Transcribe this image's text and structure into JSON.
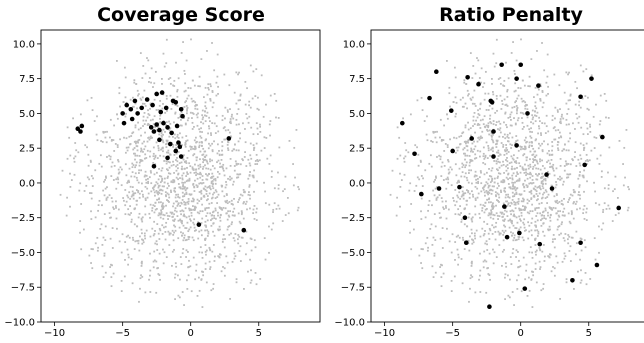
{
  "chart_data": [
    {
      "type": "scatter",
      "title": "Coverage Score",
      "xlabel": "",
      "ylabel": "",
      "xlim": [
        -11,
        9.5
      ],
      "ylim": [
        -10,
        11
      ],
      "xticks": [
        -10,
        -5,
        0,
        5
      ],
      "yticks": [
        -10.0,
        -7.5,
        -5.0,
        -2.5,
        0.0,
        2.5,
        5.0,
        7.5,
        10.0
      ],
      "grid": false,
      "background_color": "#bdbdbd",
      "highlight_color": "#000000",
      "highlighted_points": [
        {
          "x": -8.3,
          "y": 3.9
        },
        {
          "x": -8.0,
          "y": 4.1
        },
        {
          "x": -8.1,
          "y": 3.7
        },
        {
          "x": -5.0,
          "y": 5.0
        },
        {
          "x": -4.7,
          "y": 5.6
        },
        {
          "x": -4.4,
          "y": 5.3
        },
        {
          "x": -4.1,
          "y": 5.9
        },
        {
          "x": -3.9,
          "y": 5.0
        },
        {
          "x": -3.6,
          "y": 5.4
        },
        {
          "x": -4.3,
          "y": 4.6
        },
        {
          "x": -4.9,
          "y": 4.3
        },
        {
          "x": -3.2,
          "y": 6.0
        },
        {
          "x": -2.8,
          "y": 5.6
        },
        {
          "x": -2.5,
          "y": 6.4
        },
        {
          "x": -2.1,
          "y": 6.5
        },
        {
          "x": -2.2,
          "y": 5.1
        },
        {
          "x": -1.8,
          "y": 5.4
        },
        {
          "x": -1.3,
          "y": 5.9
        },
        {
          "x": -1.1,
          "y": 5.8
        },
        {
          "x": -0.7,
          "y": 5.3
        },
        {
          "x": -0.6,
          "y": 4.8
        },
        {
          "x": -2.9,
          "y": 4.0
        },
        {
          "x": -2.7,
          "y": 3.7
        },
        {
          "x": -2.5,
          "y": 4.2
        },
        {
          "x": -2.3,
          "y": 3.8
        },
        {
          "x": -2.0,
          "y": 4.3
        },
        {
          "x": -1.7,
          "y": 4.0
        },
        {
          "x": -1.4,
          "y": 3.6
        },
        {
          "x": -1.0,
          "y": 4.1
        },
        {
          "x": -2.3,
          "y": 3.1
        },
        {
          "x": -1.5,
          "y": 2.8
        },
        {
          "x": -1.1,
          "y": 2.3
        },
        {
          "x": -0.8,
          "y": 2.6
        },
        {
          "x": -0.9,
          "y": 2.9
        },
        {
          "x": -0.7,
          "y": 1.9
        },
        {
          "x": -1.7,
          "y": 1.8
        },
        {
          "x": -2.7,
          "y": 1.2
        },
        {
          "x": 2.8,
          "y": 3.2
        },
        {
          "x": 0.6,
          "y": -3.0
        },
        {
          "x": 3.9,
          "y": -3.4
        }
      ]
    },
    {
      "type": "scatter",
      "title": "Ratio Penalty",
      "xlabel": "",
      "ylabel": "",
      "xlim": [
        -11,
        9.5
      ],
      "ylim": [
        -10,
        11
      ],
      "xticks": [
        -10,
        -5,
        0,
        5
      ],
      "yticks": [
        -10.0,
        -7.5,
        -5.0,
        -2.5,
        0.0,
        2.5,
        5.0,
        7.5,
        10.0
      ],
      "grid": false,
      "background_color": "#bdbdbd",
      "highlight_color": "#000000",
      "highlighted_points": [
        {
          "x": -6.2,
          "y": 8.0
        },
        {
          "x": -3.9,
          "y": 7.6
        },
        {
          "x": -3.1,
          "y": 7.1
        },
        {
          "x": -1.4,
          "y": 8.5
        },
        {
          "x": 0.0,
          "y": 8.5
        },
        {
          "x": -0.3,
          "y": 7.5
        },
        {
          "x": 1.3,
          "y": 7.0
        },
        {
          "x": 5.2,
          "y": 7.5
        },
        {
          "x": -6.7,
          "y": 6.1
        },
        {
          "x": -2.2,
          "y": 5.9
        },
        {
          "x": -2.1,
          "y": 5.8
        },
        {
          "x": 4.4,
          "y": 6.2
        },
        {
          "x": -5.1,
          "y": 5.2
        },
        {
          "x": 0.5,
          "y": 5.0
        },
        {
          "x": -8.7,
          "y": 4.3
        },
        {
          "x": -2.0,
          "y": 3.7
        },
        {
          "x": -3.6,
          "y": 3.2
        },
        {
          "x": 6.0,
          "y": 3.3
        },
        {
          "x": -7.8,
          "y": 2.1
        },
        {
          "x": -5.0,
          "y": 2.3
        },
        {
          "x": -0.3,
          "y": 2.7
        },
        {
          "x": -2.0,
          "y": 1.9
        },
        {
          "x": 4.7,
          "y": 1.3
        },
        {
          "x": 1.9,
          "y": 0.6
        },
        {
          "x": -6.0,
          "y": -0.4
        },
        {
          "x": -4.5,
          "y": -0.3
        },
        {
          "x": 2.3,
          "y": -0.4
        },
        {
          "x": -7.3,
          "y": -0.8
        },
        {
          "x": -1.2,
          "y": -1.7
        },
        {
          "x": 7.2,
          "y": -1.8
        },
        {
          "x": -4.1,
          "y": -2.5
        },
        {
          "x": -0.1,
          "y": -3.6
        },
        {
          "x": -1.0,
          "y": -3.9
        },
        {
          "x": -4.0,
          "y": -4.3
        },
        {
          "x": 1.4,
          "y": -4.4
        },
        {
          "x": 4.4,
          "y": -4.3
        },
        {
          "x": 5.6,
          "y": -5.9
        },
        {
          "x": 3.8,
          "y": -7.0
        },
        {
          "x": 0.3,
          "y": -7.6
        },
        {
          "x": -2.3,
          "y": -8.9
        }
      ]
    }
  ]
}
